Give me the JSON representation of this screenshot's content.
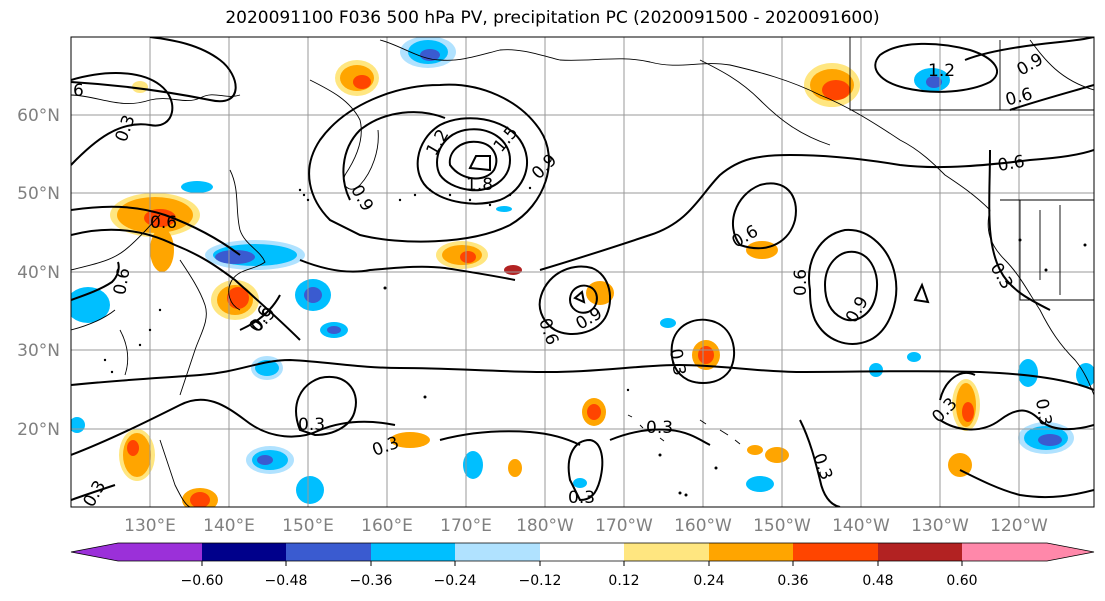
{
  "title": "2020091100 F036 500 hPa PV, precipitation PC (2020091500 - 2020091600)",
  "lat_labels": [
    "60°N",
    "50°N",
    "40°N",
    "30°N",
    "20°N"
  ],
  "lon_labels": [
    "130°E",
    "140°E",
    "150°E",
    "160°E",
    "170°E",
    "180°W",
    "170°W",
    "160°W",
    "150°W",
    "140°W",
    "130°W",
    "120°W"
  ],
  "colorbar": {
    "colors": [
      "#9b30d9",
      "#00008b",
      "#3a5bd0",
      "#00bfff",
      "#b0e2ff",
      "#ffffff",
      "#ffe680",
      "#ffa500",
      "#ff4500",
      "#b22222",
      "#ff88aa"
    ],
    "tick_labels": [
      "−0.60",
      "−0.48",
      "−0.36",
      "−0.24",
      "−0.12",
      "0.12",
      "0.24",
      "0.36",
      "0.48",
      "0.60"
    ]
  },
  "contour_labels": [
    "6",
    "0.3",
    "0.6",
    "0.9",
    "1.2",
    "1.5",
    "1.8",
    "0.9",
    "0.6",
    "0.9",
    "0.6",
    "0.9",
    "0.6",
    "0.9",
    "0.6",
    "0.3",
    "0.3",
    "0.3",
    "0.3",
    "0.3",
    "0.3",
    "0.3",
    "0.6",
    "0.3",
    "0.3",
    "1.2",
    "0.9",
    "0.6",
    "0.6",
    "0.3"
  ]
}
